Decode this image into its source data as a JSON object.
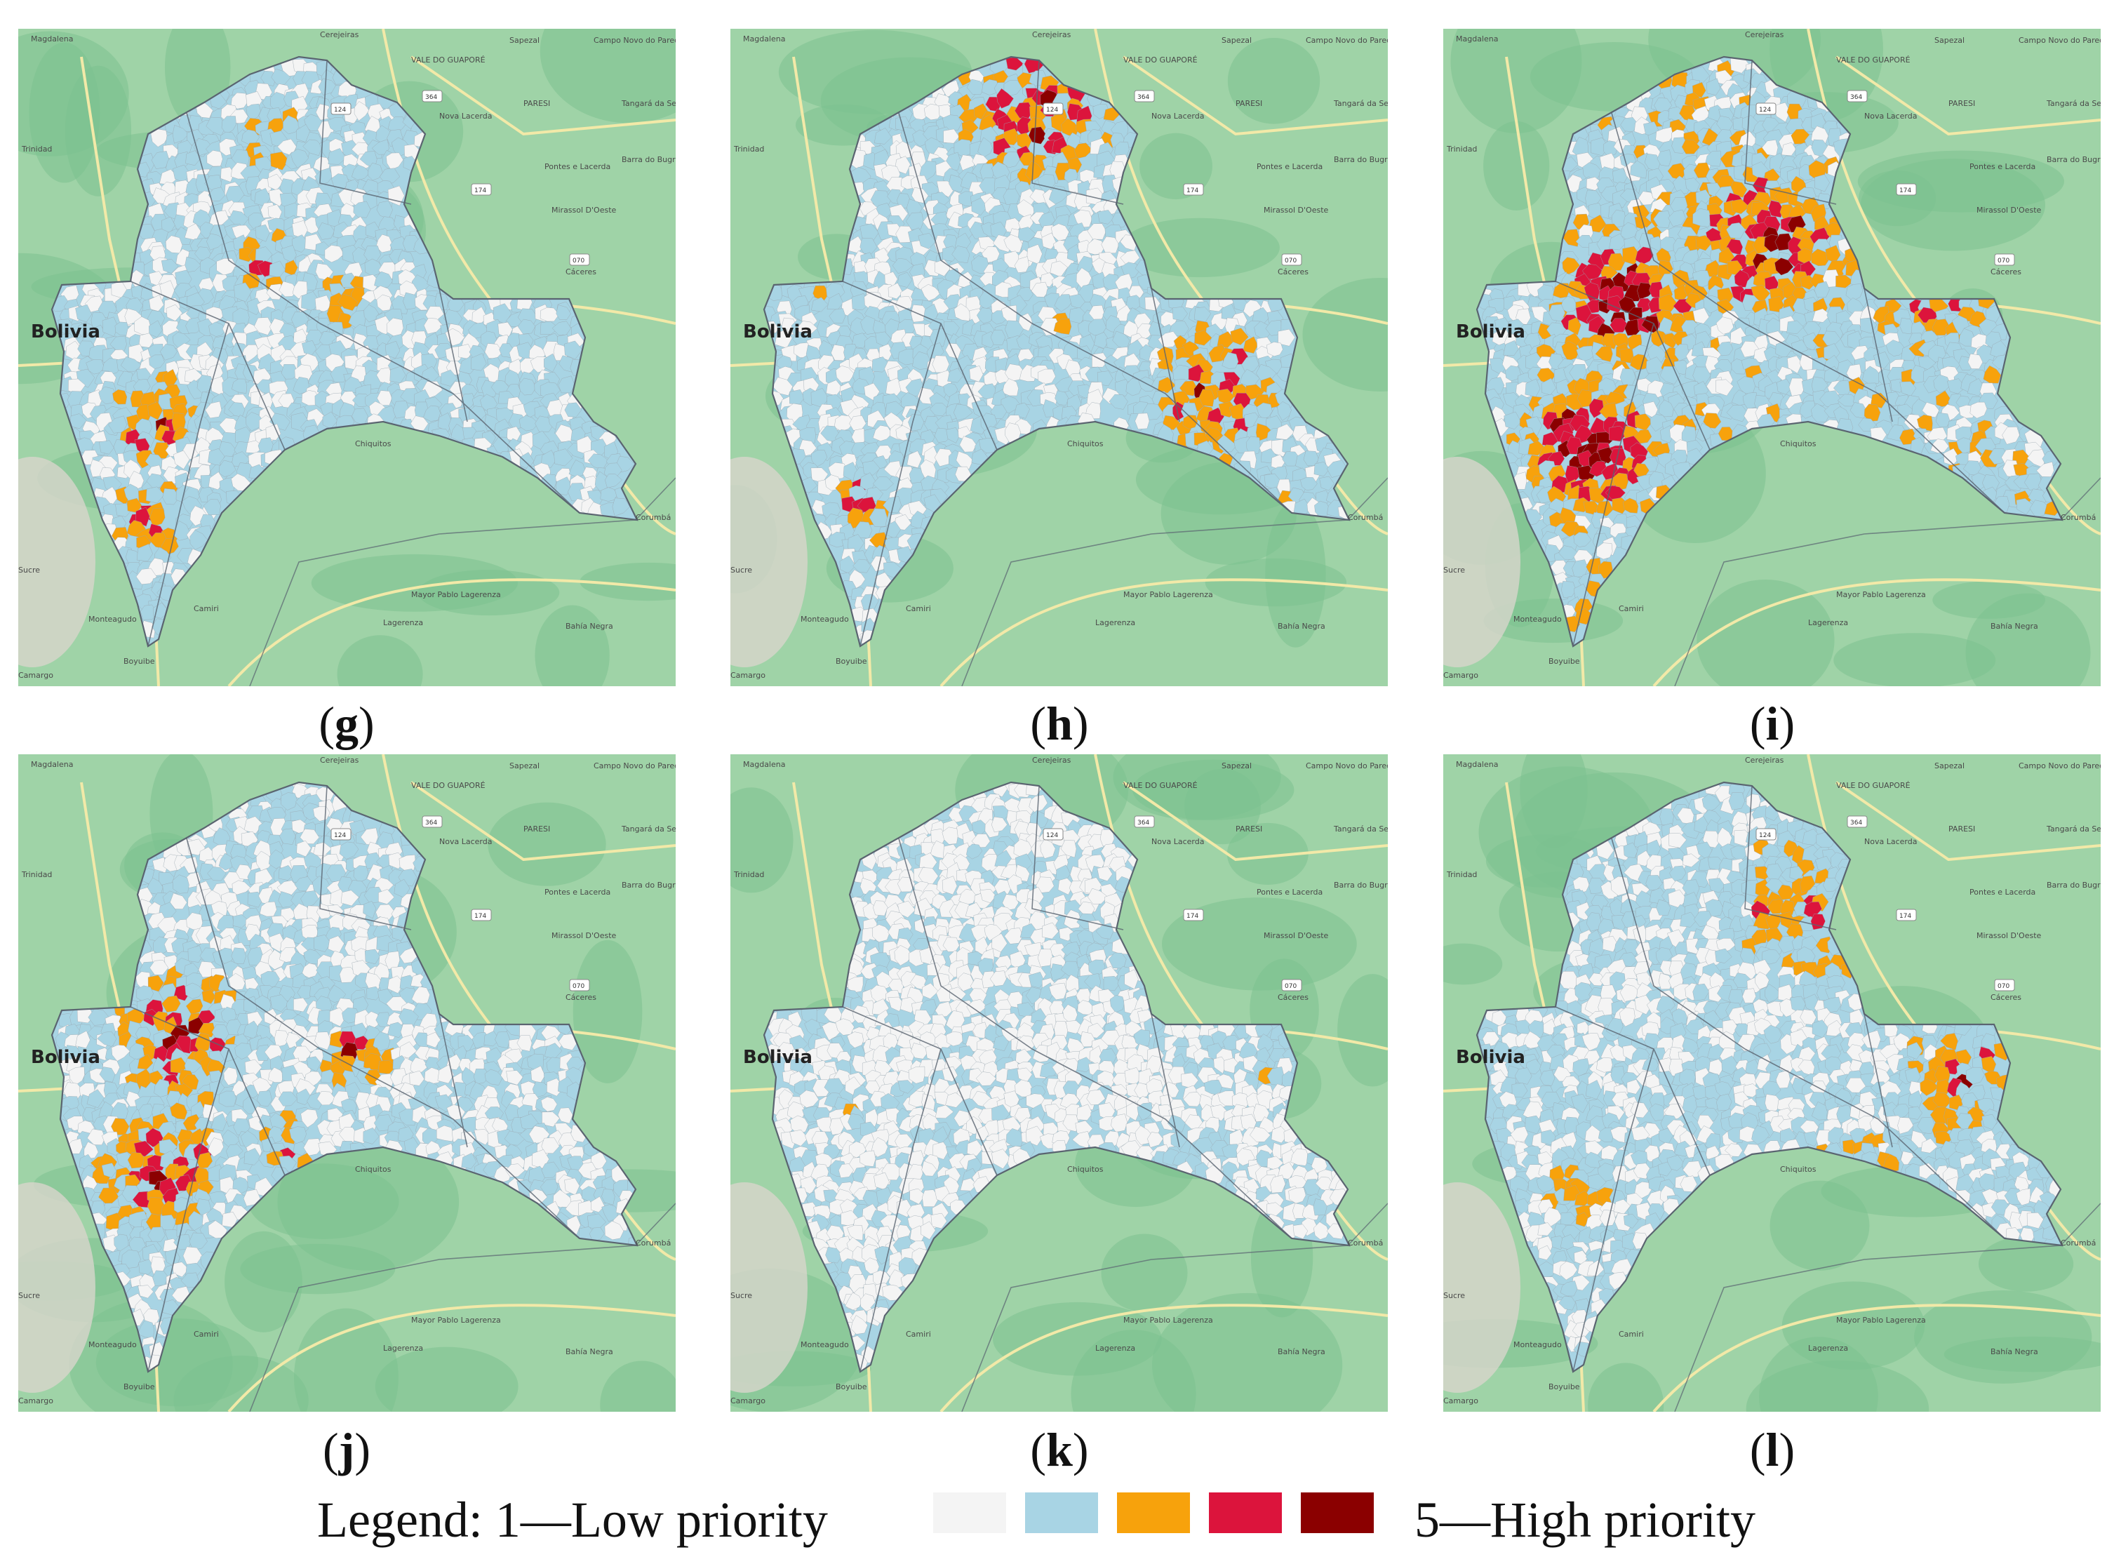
{
  "panels": [
    {
      "id": "g",
      "label": "g"
    },
    {
      "id": "h",
      "label": "h"
    },
    {
      "id": "i",
      "label": "i"
    },
    {
      "id": "j",
      "label": "j"
    },
    {
      "id": "k",
      "label": "k"
    },
    {
      "id": "l",
      "label": "l"
    }
  ],
  "map_labels": {
    "magdalena": "Magdalena",
    "cerejeiras": "Cerejeiras",
    "vale_do_guapore": "VALE DO GUAPORÉ",
    "sapezal": "Sapezal",
    "campo_novo": "Campo Novo do Parecis",
    "paresi": "PARESI",
    "nova_lacerda": "Nova Lacerda",
    "tangara": "Tangará da Serra",
    "trinidad": "Trinidad",
    "pontes_lacerda": "Pontes e Lacerda",
    "barra_bugres": "Barra do Bugres",
    "mirassol": "Mirassol D'Oeste",
    "caceres": "Cáceres",
    "bolivia": "Bolivia",
    "chiquitos": "Chiquitos",
    "corumba": "Corumbá",
    "sucre": "Sucre",
    "monteagudo": "Monteagudo",
    "camiri": "Camiri",
    "mayor_pablo": "Mayor Pablo Lagerenza",
    "lagerenza": "Lagerenza",
    "bahia_negra": "Bahía Negra",
    "boyuibe": "Boyuibe",
    "camargo": "Camargo"
  },
  "legend": {
    "low_label": "Legend: 1—Low priority",
    "high_label": "5—High priority",
    "levels": [
      {
        "level": 1,
        "color": "#f4f4f4"
      },
      {
        "level": 2,
        "color": "#a8d4e4"
      },
      {
        "level": 3,
        "color": "#f7a20c"
      },
      {
        "level": 4,
        "color": "#dc143c"
      },
      {
        "level": 5,
        "color": "#8b0000"
      }
    ]
  },
  "colors": {
    "map_background": "#9fd3a7",
    "forest": "#7cc190",
    "road": "#f2e9a8",
    "boundary": "#5a6470"
  }
}
